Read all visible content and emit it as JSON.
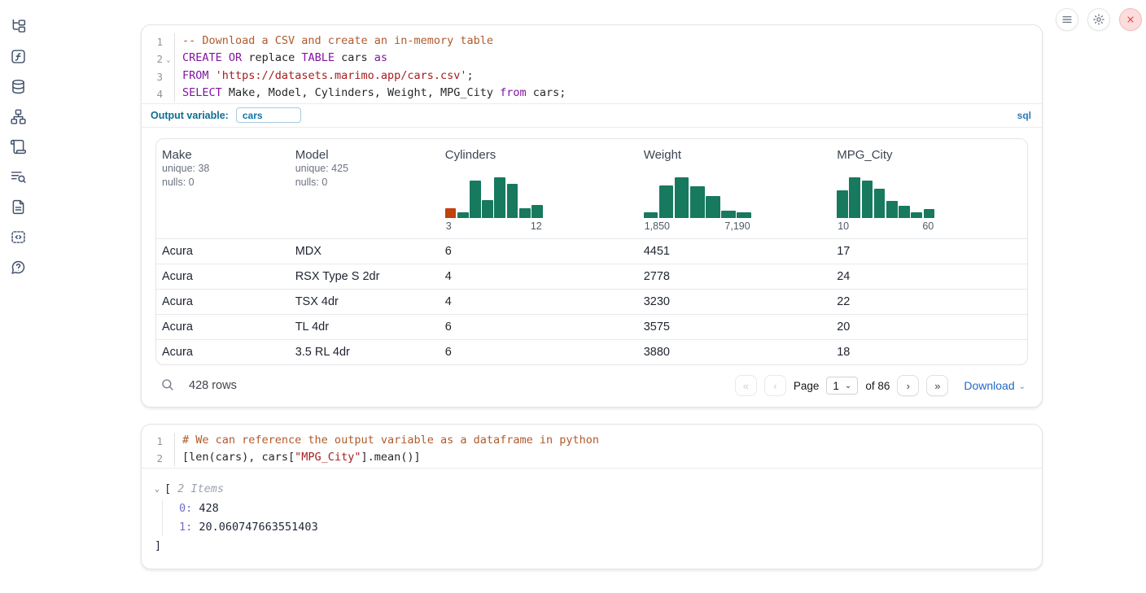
{
  "colors": {
    "keyword": "#8214a0",
    "comment": "#b05a2c",
    "string": "#a51e1e",
    "accent_blue": "#2569c3",
    "outvar_teal": "#0c6e91",
    "histogram_green": "#17795e",
    "histogram_orange": "#c2410c"
  },
  "glyphs": {
    "first_page": "«",
    "prev_page": "‹",
    "next_page": "›",
    "last_page": "»",
    "dropdown_chevron": "⌄",
    "fold_chevron": "⌄",
    "tree_chevron": "⌄"
  },
  "topbar": {
    "buttons": [
      {
        "name": "menu-button",
        "icon": "menu-icon"
      },
      {
        "name": "settings-button",
        "icon": "gear-icon"
      },
      {
        "name": "close-button",
        "icon": "close-icon"
      }
    ]
  },
  "sidebar": {
    "icons": [
      "file-tree-icon",
      "function-icon",
      "database-icon",
      "dependency-graph-icon",
      "scroll-icon",
      "log-search-icon",
      "document-icon",
      "snippets-icon",
      "help-icon"
    ]
  },
  "sql_cell": {
    "lines": [
      {
        "num": "1",
        "fold": false,
        "tokens": [
          {
            "t": "-- Download a CSV and create an in-memory table",
            "c": "comment"
          }
        ]
      },
      {
        "num": "2",
        "fold": true,
        "tokens": [
          {
            "t": "CREATE",
            "c": "kw"
          },
          {
            "t": " ",
            "c": "plain"
          },
          {
            "t": "OR",
            "c": "kw"
          },
          {
            "t": " replace ",
            "c": "plain"
          },
          {
            "t": "TABLE",
            "c": "kw"
          },
          {
            "t": " cars ",
            "c": "plain"
          },
          {
            "t": "as",
            "c": "kw"
          }
        ]
      },
      {
        "num": "3",
        "fold": false,
        "tokens": [
          {
            "t": "FROM",
            "c": "kw"
          },
          {
            "t": " ",
            "c": "plain"
          },
          {
            "t": "'https://datasets.marimo.app/cars.csv'",
            "c": "str"
          },
          {
            "t": ";",
            "c": "plain"
          }
        ]
      },
      {
        "num": "4",
        "fold": false,
        "tokens": [
          {
            "t": "SELECT",
            "c": "kw"
          },
          {
            "t": " Make, Model, Cylinders, Weight, MPG_City ",
            "c": "plain"
          },
          {
            "t": "from",
            "c": "kw"
          },
          {
            "t": " cars;",
            "c": "plain"
          }
        ]
      }
    ],
    "output_variable": {
      "label": "Output variable:",
      "value": "cars"
    },
    "language_badge": "sql"
  },
  "table": {
    "columns": [
      {
        "name": "Make",
        "stats": [
          "unique: 38",
          "nulls: 0"
        ]
      },
      {
        "name": "Model",
        "stats": [
          "unique: 425",
          "nulls: 0"
        ]
      },
      {
        "name": "Cylinders",
        "histogram": {
          "values": [
            0.23,
            0.13,
            0.88,
            0.42,
            0.96,
            0.81,
            0.23,
            0.31
          ],
          "colors": [
            "#c2410c",
            "#17795e",
            "#17795e",
            "#17795e",
            "#17795e",
            "#17795e",
            "#17795e",
            "#17795e"
          ],
          "min_label": "3",
          "max_label": "12"
        }
      },
      {
        "name": "Weight",
        "histogram": {
          "values": [
            0.13,
            0.77,
            0.96,
            0.75,
            0.52,
            0.17,
            0.13
          ],
          "colors": [
            "#17795e",
            "#17795e",
            "#17795e",
            "#17795e",
            "#17795e",
            "#17795e",
            "#17795e"
          ],
          "min_label": "1,850",
          "max_label": "7,190"
        }
      },
      {
        "name": "MPG_City",
        "histogram": {
          "values": [
            0.65,
            0.96,
            0.88,
            0.69,
            0.4,
            0.29,
            0.13,
            0.21
          ],
          "colors": [
            "#17795e",
            "#17795e",
            "#17795e",
            "#17795e",
            "#17795e",
            "#17795e",
            "#17795e",
            "#17795e"
          ],
          "min_label": "10",
          "max_label": "60"
        }
      }
    ],
    "rows": [
      [
        "Acura",
        "MDX",
        "6",
        "4451",
        "17"
      ],
      [
        "Acura",
        "RSX Type S 2dr",
        "4",
        "2778",
        "24"
      ],
      [
        "Acura",
        "TSX 4dr",
        "4",
        "3230",
        "22"
      ],
      [
        "Acura",
        "TL 4dr",
        "6",
        "3575",
        "20"
      ],
      [
        "Acura",
        "3.5 RL 4dr",
        "6",
        "3880",
        "18"
      ]
    ],
    "footer": {
      "row_count": "428 rows",
      "page_label": "Page",
      "page_value": "1",
      "of_label": "of 86",
      "download_label": "Download"
    }
  },
  "python_cell": {
    "lines": [
      {
        "num": "1",
        "fold": false,
        "tokens": [
          {
            "t": "# We can reference the output variable as a dataframe in python",
            "c": "comment"
          }
        ]
      },
      {
        "num": "2",
        "fold": false,
        "tokens": [
          {
            "t": "[len(cars), cars[",
            "c": "plain"
          },
          {
            "t": "\"MPG_City\"",
            "c": "str"
          },
          {
            "t": "].mean()]",
            "c": "plain"
          }
        ]
      }
    ]
  },
  "tree_output": {
    "open_bracket": "[",
    "items_label": "2 Items",
    "entries": [
      {
        "key": "0:",
        "value": "428"
      },
      {
        "key": "1:",
        "value": "20.060747663551403"
      }
    ],
    "close_bracket": "]"
  }
}
